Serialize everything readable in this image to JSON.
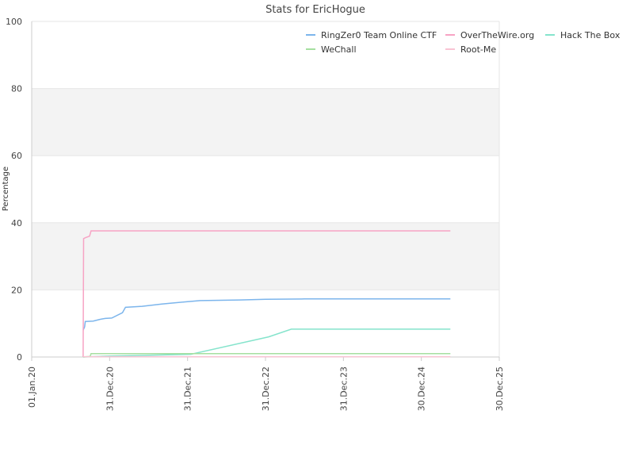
{
  "chart_data": {
    "type": "line",
    "title": "Stats for EricHogue",
    "ylabel": "Percentage",
    "xlabel": "",
    "ylim": [
      0,
      100
    ],
    "yticks": [
      0,
      20,
      40,
      60,
      80,
      100
    ],
    "xlim": [
      "2020-01-01",
      "2025-12-30"
    ],
    "xticks": [
      {
        "date": "2020-01-01",
        "label": "01.Jan.20"
      },
      {
        "date": "2020-12-31",
        "label": "31.Dec.20"
      },
      {
        "date": "2021-12-31",
        "label": "31.Dec.21"
      },
      {
        "date": "2022-12-31",
        "label": "31.Dec.22"
      },
      {
        "date": "2023-12-31",
        "label": "31.Dec.23"
      },
      {
        "date": "2024-12-30",
        "label": "30.Dec.24"
      },
      {
        "date": "2025-12-30",
        "label": "30.Dec.25"
      }
    ],
    "grid": "horizontal bands",
    "legend_position": "top-right",
    "series": [
      {
        "name": "RingZer0 Team Online CTF",
        "color": "#7cb5ec",
        "points": [
          [
            "2020-08-29",
            8
          ],
          [
            "2020-09-05",
            9
          ],
          [
            "2020-09-08",
            10.6
          ],
          [
            "2020-10-15",
            10.7
          ],
          [
            "2020-11-15",
            11.2
          ],
          [
            "2020-12-10",
            11.5
          ],
          [
            "2021-01-10",
            11.6
          ],
          [
            "2021-03-01",
            13.2
          ],
          [
            "2021-03-15",
            14.8
          ],
          [
            "2021-06-01",
            15.1
          ],
          [
            "2021-09-01",
            15.8
          ],
          [
            "2021-12-31",
            16.5
          ],
          [
            "2022-03-01",
            16.8
          ],
          [
            "2022-09-01",
            17
          ],
          [
            "2023-01-01",
            17.2
          ],
          [
            "2023-07-01",
            17.3
          ],
          [
            "2025-05-15",
            17.3
          ]
        ]
      },
      {
        "name": "OverTheWire.org",
        "color": "#f7a3c4",
        "points": [
          [
            "2020-08-29",
            0
          ],
          [
            "2020-08-31",
            35.3
          ],
          [
            "2020-09-10",
            35.6
          ],
          [
            "2020-09-28",
            36
          ],
          [
            "2020-10-05",
            37.6
          ],
          [
            "2025-05-15",
            37.6
          ]
        ]
      },
      {
        "name": "Hack The Box",
        "color": "#85e4cc",
        "points": [
          [
            "2020-08-29",
            0
          ],
          [
            "2020-12-31",
            0.3
          ],
          [
            "2021-06-15",
            0.5
          ],
          [
            "2022-01-15",
            0.8
          ],
          [
            "2023-01-15",
            6
          ],
          [
            "2023-05-01",
            8.3
          ],
          [
            "2025-05-15",
            8.3
          ]
        ]
      },
      {
        "name": "WeChall",
        "color": "#a5dfa0",
        "points": [
          [
            "2020-08-29",
            0
          ],
          [
            "2020-10-01",
            0.2
          ],
          [
            "2020-10-05",
            1
          ],
          [
            "2025-05-15",
            1
          ]
        ]
      },
      {
        "name": "Root-Me",
        "color": "#f9c3d3",
        "points": [
          [
            "2020-08-29",
            0.1
          ],
          [
            "2025-05-15",
            0.1
          ]
        ]
      }
    ]
  }
}
